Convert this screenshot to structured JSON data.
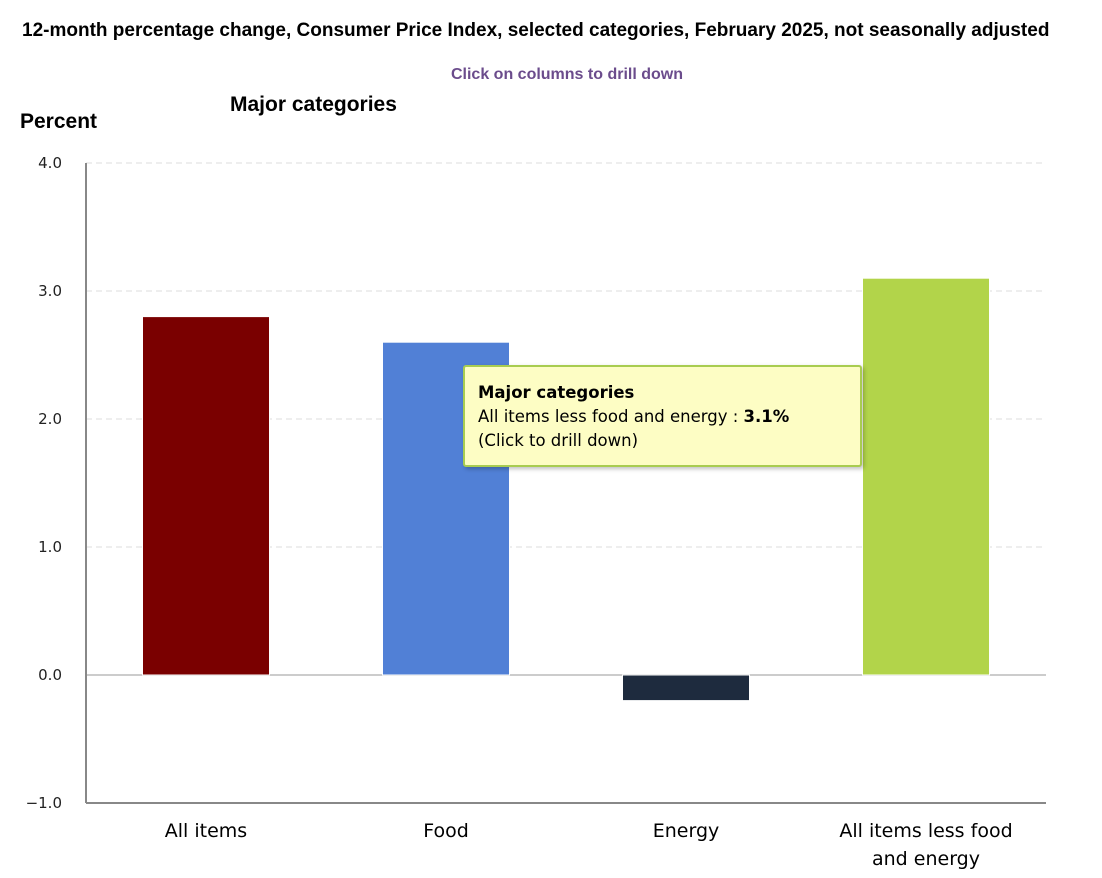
{
  "chart_data": {
    "type": "bar",
    "title": "12-month percentage change, Consumer Price Index, selected categories, February 2025, not seasonally adjusted",
    "note": "Click on columns to drill down",
    "subtitle": "Major categories",
    "ylabel": "Percent",
    "xlabel": "",
    "ylim": [
      -1.0,
      4.0
    ],
    "yticks": [
      "4.0",
      "3.0",
      "2.0",
      "1.0",
      "0.0",
      "−1.0"
    ],
    "ytick_values": [
      4,
      3,
      2,
      1,
      0,
      -1
    ],
    "grid": true,
    "categories": [
      "All items",
      "Food",
      "Energy",
      "All items less food and energy"
    ],
    "category_lines": [
      [
        "All items"
      ],
      [
        "Food"
      ],
      [
        "Energy"
      ],
      [
        "All items less food",
        "and energy"
      ]
    ],
    "values": [
      2.8,
      2.6,
      -0.2,
      3.1
    ],
    "colors": [
      "#7a0000",
      "#5180d6",
      "#1e2b3e",
      "#b2d44a"
    ]
  },
  "tooltip": {
    "title": "Major categories",
    "label": "All items less food and energy : ",
    "value": "3.1%",
    "hint": "(Click to drill down)"
  }
}
